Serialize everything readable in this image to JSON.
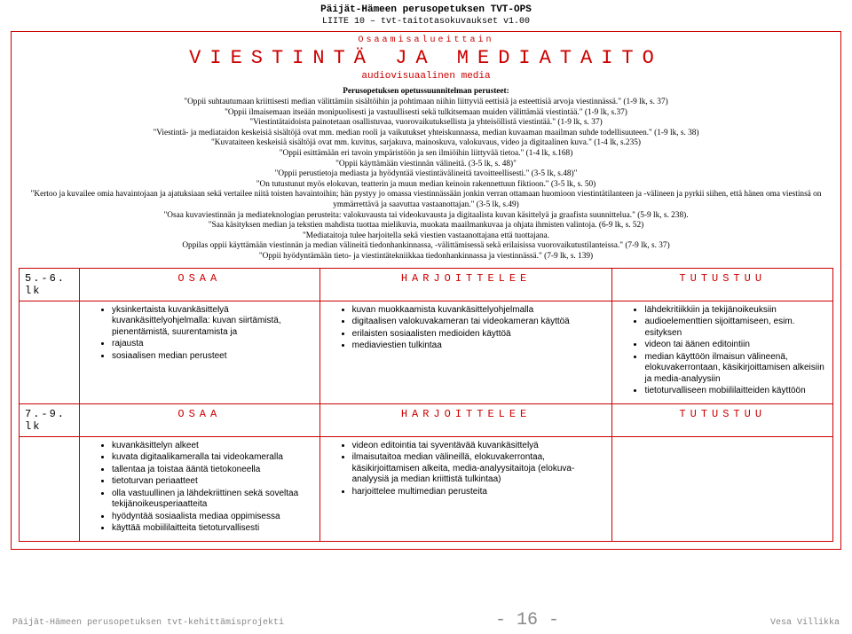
{
  "header": {
    "line1": "Päijät-Hämeen perusopetuksen TVT-OPS",
    "line2": "LIITE 10 – tvt-taitotasokuvaukset v1.00"
  },
  "section": {
    "sup": "Osaamisalueittain",
    "title": "VIESTINTÄ JA MEDIATAITO",
    "sub": "audiovisuaalinen media"
  },
  "intro_heading": "Perusopetuksen opetussuunnitelman perusteet:",
  "intro_lines": [
    "\"Oppii suhtautumaan kriittisesti median välittämiin sisältöihin ja pohtimaan niihin liittyviä eettisiä ja esteettisiä arvoja viestinnässä.\" (1-9 lk, s. 37)",
    "\"Oppii ilmaisemaan itseään monipuolisesti ja vastuullisesti sekä tulkitsemaan muiden välittämää viestintää.\" (1-9 lk, s.37)",
    "\"Viestintätaidoista painotetaan osallistuvaa, vuorovaikutuksellista ja yhteisöllistä viestintää.\" (1-9 lk, s. 37)",
    "\"Viestintä- ja mediataidon keskeisiä sisältöjä ovat mm. median rooli ja vaikutukset yhteiskunnassa, median kuvaaman maailman suhde todellisuuteen.\" (1-9 lk, s. 38)",
    "\"Kuvataiteen keskeisiä sisältöjä ovat mm. kuvitus, sarjakuva, mainoskuva, valokuvaus, video ja digitaalinen kuva.\" (1-4 lk, s.235)",
    "\"Oppii esittämään eri tavoin ympäristöön ja sen ilmiöihin liittyvää tietoa.\" (1-4 lk, s.168)",
    "\"Oppii käyttämään viestinnän välineitä. (3-5 lk, s. 48)\"",
    "\"Oppii perustietoja mediasta ja hyödyntää viestintävälineitä tavoitteellisesti.\" (3-5 lk, s.48)\"",
    "\"On tutustunut myös elokuvan, teatterin ja muun median keinoin rakennettuun fiktioon.\" (3-5 lk, s. 50)",
    "\"Kertoo ja kuvailee omia havaintojaan ja ajatuksiaan sekä vertailee niitä toisten havaintoihin; hän pystyy jo omassa viestinnässään jonkin verran ottamaan huomioon viestintätilanteen ja -välineen ja pyrkii siihen, että hänen oma viestinsä on ymmärrettävä ja saavuttaa vastaanottajan.\" (3-5 lk, s.49)",
    "\"Osaa kuvaviestinnän ja mediateknologian perusteita: valokuvausta tai videokuvausta ja digitaalista kuvan käsittelyä ja graafista suunnittelua.\" (5-9 lk, s. 238).",
    "\"Saa käsityksen median ja tekstien mahdista tuottaa mielikuvia, muokata maailmankuvaa ja ohjata ihmisten valintoja. (6-9 lk, s. 52)",
    "\"Mediataitoja tulee harjoitella sekä viestien vastaanottajana että tuottajana.",
    "Oppilas oppii käyttämään viestinnän ja median välineitä tiedonhankinnassa, -välittämisessä sekä erilaisissa vuorovaikutustilanteissa.\" (7-9 lk, s. 37)",
    "\"Oppii hyödyntämään tieto- ja viestintätekniikkaa tiedonhankinnassa ja viestinnässä.\" (7-9 lk, s. 139)"
  ],
  "cols": {
    "osaa": "OSAA",
    "harj": "HARJOITTELEE",
    "tut": "TUTUSTUU"
  },
  "rows": [
    {
      "grade": "5.-6. lk",
      "osaa": [
        "yksinkertaista kuvankäsittelyä kuvankäsittelyohjelmalla: kuvan siirtämistä, pienentämistä, suurentamista ja",
        "rajausta",
        "sosiaalisen median perusteet"
      ],
      "harj": [
        "kuvan muokkaamista kuvankäsittelyohjelmalla",
        "digitaalisen valokuvakameran tai videokameran käyttöä",
        "erilaisten sosiaalisten medioiden käyttöä",
        "mediaviestien tulkintaa"
      ],
      "tut": [
        "lähdekritiikkiin ja tekijänoikeuksiin",
        "audioelementtien sijoittamiseen, esim. esityksen",
        "videon tai äänen editointiin",
        "median käyttöön ilmaisun välineenä, elokuvakerrontaan, käsikirjoittamisen alkeisiin ja media-analyysiin",
        "tietoturvalliseen mobiililaitteiden käyttöön"
      ]
    },
    {
      "grade": "7.-9. lk",
      "osaa": [
        "kuvankäsittelyn alkeet",
        "kuvata digitaalikameralla tai videokameralla",
        "tallentaa ja toistaa ääntä tietokoneella",
        "tietoturvan periaatteet",
        "olla vastuullinen ja lähdekriittinen sekä soveltaa tekijänoikeusperiaatteita",
        "hyödyntää sosiaalista mediaa oppimisessa",
        "käyttää mobiililaitteita tietoturvallisesti"
      ],
      "harj": [
        "videon editointia tai syventävää kuvankäsittelyä",
        "ilmaisutaitoa median välineillä, elokuvakerrontaa, käsikirjoittamisen alkeita, media-analyysitaitoja (elokuva-analyysiä ja median kriittistä tulkintaa)",
        "harjoittelee multimedian perusteita"
      ],
      "tut": []
    }
  ],
  "footer": {
    "left": "Päijät-Hämeen perusopetuksen tvt-kehittämisprojekti",
    "page": "- 16 -",
    "right": "Vesa Villikka"
  },
  "colors": {
    "accent": "#c00",
    "muted": "#888"
  }
}
